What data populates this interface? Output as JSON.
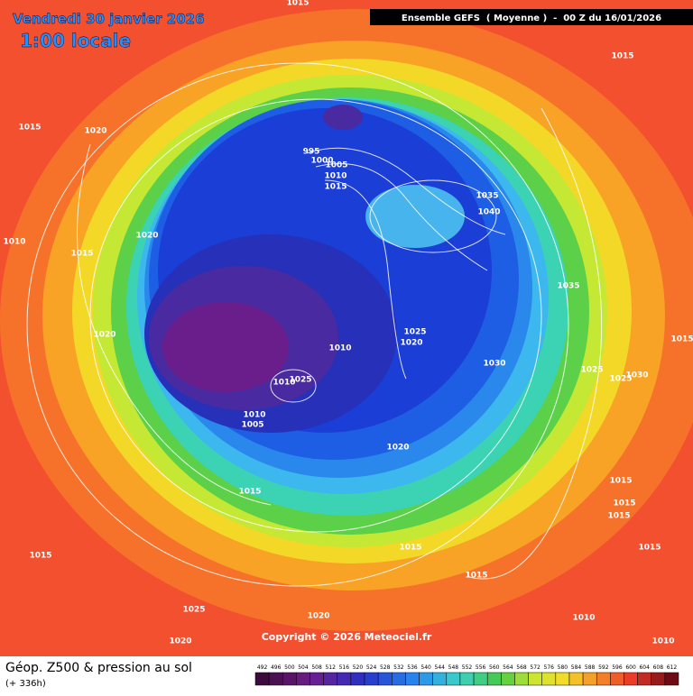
{
  "header": {
    "date": "Vendredi 30 janvier 2026",
    "time": "1:00 locale",
    "model": "Ensemble GEFS  ( Moyenne )  -  00 Z du 16/01/2026"
  },
  "footer": {
    "title": "Géop. Z500 & pression au sol",
    "lead": "(+ 336h)",
    "copyright": "Copyright © 2026 Meteociel.fr"
  },
  "legend": {
    "levels": [
      492,
      496,
      500,
      504,
      508,
      512,
      516,
      520,
      524,
      528,
      532,
      536,
      540,
      544,
      548,
      552,
      556,
      560,
      564,
      568,
      572,
      576,
      580,
      584,
      588,
      592,
      596,
      600,
      604,
      608,
      612
    ]
  },
  "isobars": [
    1015,
    1015,
    1015,
    1020,
    995,
    1000,
    1005,
    1010,
    1015,
    1035,
    1040,
    1010,
    1015,
    1020,
    1035,
    1020,
    1025,
    1020,
    1010,
    1015,
    1030,
    1025,
    1030,
    1025,
    1010,
    1025,
    1010,
    1005,
    1020,
    1015,
    1015,
    1015,
    1015,
    1015,
    1015,
    1015,
    1015,
    1025,
    1020,
    1010,
    1020,
    1010
  ]
}
